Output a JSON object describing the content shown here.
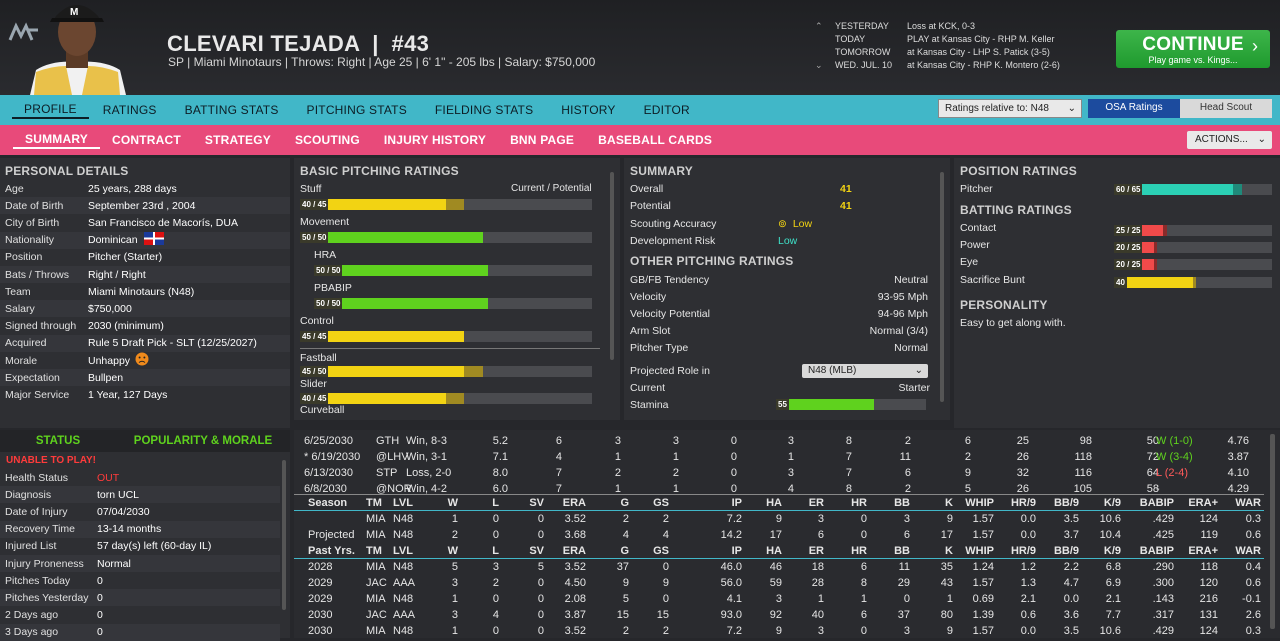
{
  "player": {
    "name": "CLEVARI TEJADA",
    "number": "#43",
    "info": "SP | Miami Minotaurs  |  Throws: Right  |  Age 25  |  6' 1\" - 205 lbs  |  Salary: $750,000"
  },
  "schedule": [
    {
      "day": "YESTERDAY",
      "game": "Loss at KCK, 0-3"
    },
    {
      "day": "TODAY",
      "game": "PLAY at Kansas City - RHP M. Keller"
    },
    {
      "day": "TOMORROW",
      "game": "at Kansas City - LHP S. Patick (3-5)"
    },
    {
      "day": "WED. JUL. 10",
      "game": "at Kansas City - RHP K. Montero (2-6)"
    }
  ],
  "continue": {
    "label": "CONTINUE",
    "sub": "Play game vs. Kings..."
  },
  "tabs1": [
    "PROFILE",
    "RATINGS",
    "BATTING STATS",
    "PITCHING STATS",
    "FIELDING STATS",
    "HISTORY",
    "EDITOR"
  ],
  "ratings_rel": "Ratings relative to: N48",
  "osa": "OSA Ratings",
  "head_scout": "Head Scout",
  "tabs2": [
    "SUMMARY",
    "CONTRACT",
    "STRATEGY",
    "SCOUTING",
    "INJURY HISTORY",
    "BNN PAGE",
    "BASEBALL CARDS"
  ],
  "actions": "ACTIONS...",
  "personal": {
    "title": "PERSONAL DETAILS",
    "rows": [
      [
        "Age",
        "25 years, 288 days"
      ],
      [
        "Date of Birth",
        "September 23rd , 2004"
      ],
      [
        "City of Birth",
        "San Francisco de Macorís, DUA"
      ],
      [
        "Nationality",
        "Dominican"
      ],
      [
        "Position",
        "Pitcher (Starter)"
      ],
      [
        "Bats / Throws",
        "Right / Right"
      ],
      [
        "Team",
        "Miami Minotaurs (N48)"
      ],
      [
        "Salary",
        "$750,000"
      ],
      [
        "Signed through",
        "2030 (minimum)"
      ],
      [
        "Acquired",
        "Rule 5 Draft Pick - SLT (12/25/2027)"
      ],
      [
        "Morale",
        "Unhappy"
      ],
      [
        "Expectation",
        "Bullpen"
      ],
      [
        "Major Service",
        "1 Year, 127 Days"
      ]
    ]
  },
  "basic": {
    "title": "BASIC PITCHING RATINGS",
    "cp": "Current / Potential",
    "items": [
      {
        "name": "Stuff",
        "lbl": "40 / 45",
        "cur": 40,
        "pot": 45,
        "color": "#f2d313"
      },
      {
        "name": "Movement",
        "lbl": "50 / 50",
        "cur": 50,
        "pot": 50,
        "color": "#5fd21e"
      },
      {
        "name": "HRA",
        "lbl": "50 / 50",
        "cur": 50,
        "pot": 50,
        "color": "#5fd21e"
      },
      {
        "name": "PBABIP",
        "lbl": "50 / 50",
        "cur": 50,
        "pot": 50,
        "color": "#5fd21e"
      },
      {
        "name": "Control",
        "lbl": "45 / 45",
        "cur": 45,
        "pot": 45,
        "color": "#f2d313"
      },
      {
        "name": "Fastball",
        "lbl": "45 / 50",
        "cur": 45,
        "pot": 50,
        "color": "#f2d313"
      },
      {
        "name": "Slider",
        "lbl": "40 / 45",
        "cur": 40,
        "pot": 45,
        "color": "#f2d313"
      },
      {
        "name": "Curveball",
        "lbl": "",
        "cur": 0,
        "pot": 0,
        "color": "#f2d313"
      }
    ]
  },
  "summary": {
    "title": "SUMMARY",
    "overall": [
      "Overall",
      "41"
    ],
    "potential": [
      "Potential",
      "41"
    ],
    "acc": [
      "Scouting Accuracy",
      "Low"
    ],
    "risk": [
      "Development Risk",
      "Low"
    ],
    "other_title": "OTHER PITCHING RATINGS",
    "other": [
      [
        "GB/FB Tendency",
        "Neutral"
      ],
      [
        "Velocity",
        "93-95 Mph"
      ],
      [
        "Velocity Potential",
        "94-96 Mph"
      ],
      [
        "Arm Slot",
        "Normal (3/4)"
      ],
      [
        "Pitcher Type",
        "Normal"
      ]
    ],
    "role": [
      "Projected Role in",
      "N48 (MLB)"
    ],
    "current": [
      "Current",
      "Starter"
    ],
    "stamina": [
      "Stamina",
      "55"
    ],
    "stamina_val": 55
  },
  "position": {
    "title": "POSITION RATINGS",
    "pitcher": [
      "Pitcher",
      "60 / 65"
    ],
    "pcur": 60,
    "ppot": 65,
    "batting_title": "BATTING RATINGS",
    "batting": [
      {
        "name": "Contact",
        "lbl": "25 / 25",
        "v": 25,
        "c": "#f04a4a"
      },
      {
        "name": "Power",
        "lbl": "20 / 25",
        "v": 20,
        "c": "#f04a4a"
      },
      {
        "name": "Eye",
        "lbl": "20 / 25",
        "v": 20,
        "c": "#f04a4a"
      },
      {
        "name": "Sacrifice Bunt",
        "lbl": "40",
        "v": 40,
        "c": "#f2d313"
      }
    ],
    "personality_title": "PERSONALITY",
    "personality": "Easy to get along with."
  },
  "status": {
    "tab1": "STATUS",
    "tab2": "POPULARITY & MORALE",
    "alert": "UNABLE TO PLAY!",
    "rows": [
      [
        "Health Status",
        "OUT"
      ],
      [
        "Diagnosis",
        "torn UCL"
      ],
      [
        "Date of Injury",
        "07/04/2030"
      ],
      [
        "Recovery Time",
        "13-14 months"
      ],
      [
        "Injured List",
        "57 day(s) left (60-day IL)"
      ],
      [
        "Injury Proneness",
        "Normal"
      ],
      [
        "Pitches Today",
        "0"
      ],
      [
        "Pitches Yesterday",
        "0"
      ],
      [
        "2 Days ago",
        "0"
      ],
      [
        "3 Days ago",
        "0"
      ]
    ]
  },
  "games": [
    [
      "6/25/2030",
      "GTH",
      "Win, 8-3",
      "5.2",
      "6",
      "3",
      "3",
      "0",
      "3",
      "8",
      "2",
      "6",
      "25",
      "98",
      "50",
      "W (1-0)",
      "4.76"
    ],
    [
      "* 6/19/2030",
      "@LHV",
      "Win, 3-1",
      "7.1",
      "4",
      "1",
      "1",
      "0",
      "1",
      "7",
      "11",
      "2",
      "26",
      "118",
      "72",
      "W (3-4)",
      "3.87"
    ],
    [
      "6/13/2030",
      "STP",
      "Loss, 2-0",
      "8.0",
      "7",
      "2",
      "2",
      "0",
      "3",
      "7",
      "6",
      "9",
      "32",
      "116",
      "64",
      "L (2-4)",
      "4.10"
    ],
    [
      "6/8/2030",
      "@NOR",
      "Win, 4-2",
      "6.0",
      "7",
      "1",
      "1",
      "0",
      "4",
      "8",
      "2",
      "5",
      "26",
      "105",
      "58",
      "-",
      "4.29"
    ]
  ],
  "season_hdr": [
    "Season",
    "TM",
    "LVL",
    "W",
    "L",
    "SV",
    "ERA",
    "G",
    "GS",
    "IP",
    "HA",
    "ER",
    "HR",
    "BB",
    "K",
    "WHIP",
    "HR/9",
    "BB/9",
    "K/9",
    "BABIP",
    "ERA+",
    "WAR"
  ],
  "season": [
    [
      "",
      "MIA",
      "N48",
      "1",
      "0",
      "0",
      "3.52",
      "2",
      "2",
      "7.2",
      "9",
      "3",
      "0",
      "3",
      "9",
      "1.57",
      "0.0",
      "3.5",
      "10.6",
      ".429",
      "124",
      "0.3"
    ],
    [
      "Projected",
      "MIA",
      "N48",
      "2",
      "0",
      "0",
      "3.68",
      "4",
      "4",
      "14.2",
      "17",
      "6",
      "0",
      "6",
      "17",
      "1.57",
      "0.0",
      "3.7",
      "10.4",
      ".425",
      "119",
      "0.6"
    ]
  ],
  "past_hdr": [
    "Past Yrs.",
    "TM",
    "LVL",
    "W",
    "L",
    "SV",
    "ERA",
    "G",
    "GS",
    "IP",
    "HA",
    "ER",
    "HR",
    "BB",
    "K",
    "WHIP",
    "HR/9",
    "BB/9",
    "K/9",
    "BABIP",
    "ERA+",
    "WAR"
  ],
  "past": [
    [
      "2028",
      "MIA",
      "N48",
      "5",
      "3",
      "5",
      "3.52",
      "37",
      "0",
      "46.0",
      "46",
      "18",
      "6",
      "11",
      "35",
      "1.24",
      "1.2",
      "2.2",
      "6.8",
      ".290",
      "118",
      "0.4"
    ],
    [
      "2029",
      "JAC",
      "AAA",
      "3",
      "2",
      "0",
      "4.50",
      "9",
      "9",
      "56.0",
      "59",
      "28",
      "8",
      "29",
      "43",
      "1.57",
      "1.3",
      "4.7",
      "6.9",
      ".300",
      "120",
      "0.6"
    ],
    [
      "2029",
      "MIA",
      "N48",
      "1",
      "0",
      "0",
      "2.08",
      "5",
      "0",
      "4.1",
      "3",
      "1",
      "1",
      "0",
      "1",
      "0.69",
      "2.1",
      "0.0",
      "2.1",
      ".143",
      "216",
      "-0.1"
    ],
    [
      "2030",
      "JAC",
      "AAA",
      "3",
      "4",
      "0",
      "3.87",
      "15",
      "15",
      "93.0",
      "92",
      "40",
      "6",
      "37",
      "80",
      "1.39",
      "0.6",
      "3.6",
      "7.7",
      ".317",
      "131",
      "2.6"
    ],
    [
      "2030",
      "MIA",
      "N48",
      "1",
      "0",
      "0",
      "3.52",
      "2",
      "2",
      "7.2",
      "9",
      "3",
      "0",
      "3",
      "9",
      "1.57",
      "0.0",
      "3.5",
      "10.6",
      ".429",
      "124",
      "0.3"
    ]
  ]
}
